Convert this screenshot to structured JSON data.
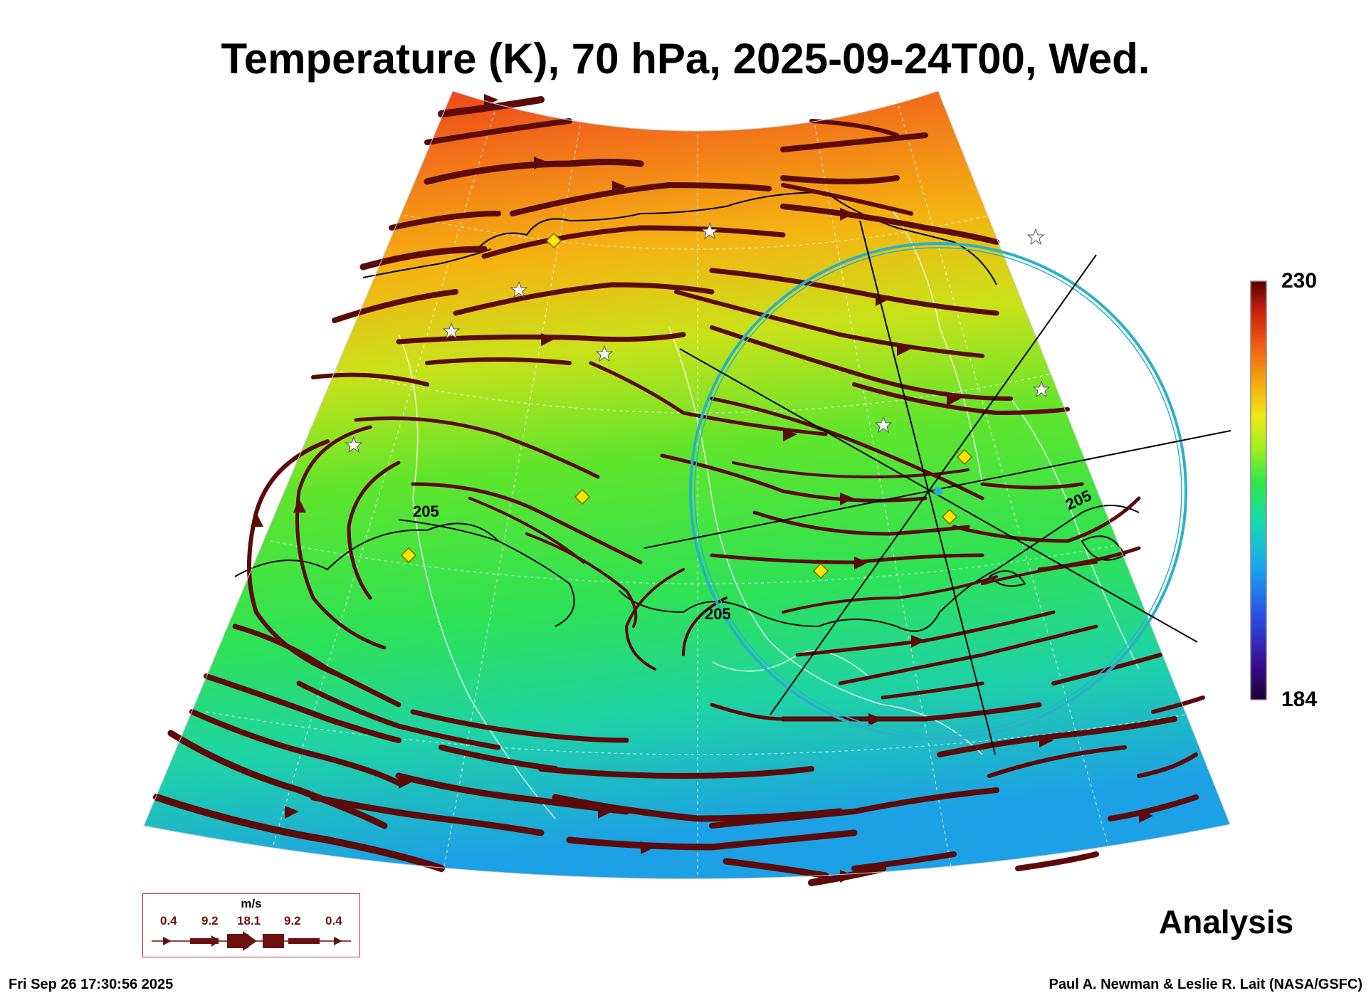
{
  "title": "Temperature (K), 70 hPa, 2025-09-24T00, Wed.",
  "colorbar": {
    "max": "230",
    "min": "184",
    "colors": [
      "#1a0033",
      "#3a0a8c",
      "#2a4fe8",
      "#19a8f0",
      "#17d9b0",
      "#2ee84a",
      "#9ef01e",
      "#f0e815",
      "#f7a70f",
      "#ef5a10",
      "#c81e0e",
      "#5a0000"
    ]
  },
  "contour_labels": [
    "205",
    "205",
    "205"
  ],
  "legend": {
    "unit": "m/s",
    "values": [
      "0.4",
      "9.2",
      "18.1",
      "9.2",
      "0.4"
    ]
  },
  "label_analysis": "Analysis",
  "timestamp": "Fri Sep 26 17:30:56 2025",
  "credit": "Paul A. Newman & Leslie R. Lait (NASA/GSFC)",
  "colors": {
    "stream": "#5c0a0a",
    "circle": "#2ab0c8",
    "marker": "#ffe600"
  }
}
